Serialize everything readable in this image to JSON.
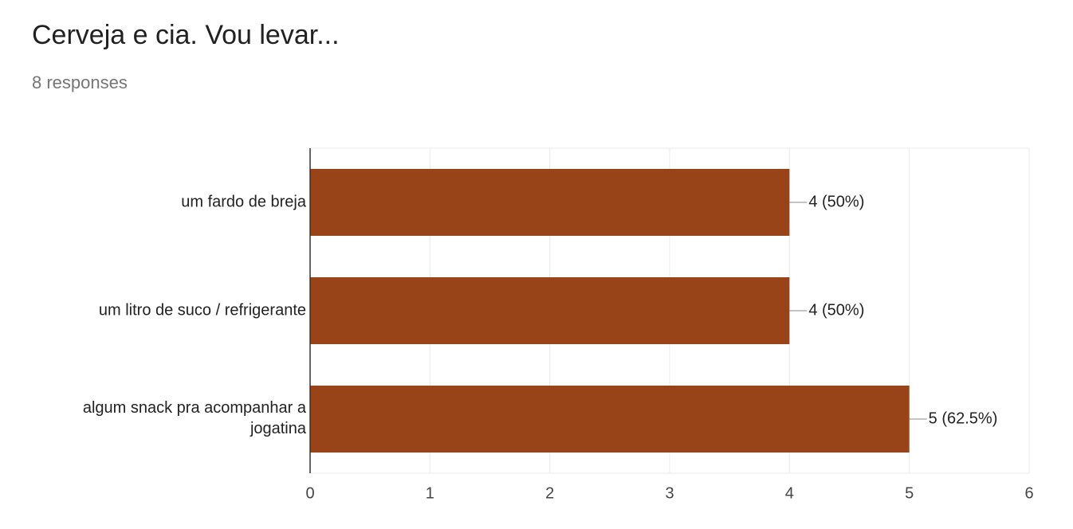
{
  "chart_data": {
    "type": "bar",
    "orientation": "horizontal",
    "title": "Cerveja e cia. Vou levar...",
    "subtitle": "8 responses",
    "categories": [
      "um fardo de breja",
      "um litro de suco / refrigerante",
      "algum snack pra acompanhar a jogatina"
    ],
    "values": [
      4,
      4,
      5
    ],
    "value_labels": [
      "4 (50%)",
      "4 (50%)",
      "5 (62.5%)"
    ],
    "color": "#994318",
    "xlim": [
      0,
      6
    ],
    "xticks": [
      0,
      1,
      2,
      3,
      4,
      5,
      6
    ],
    "grid": true
  }
}
